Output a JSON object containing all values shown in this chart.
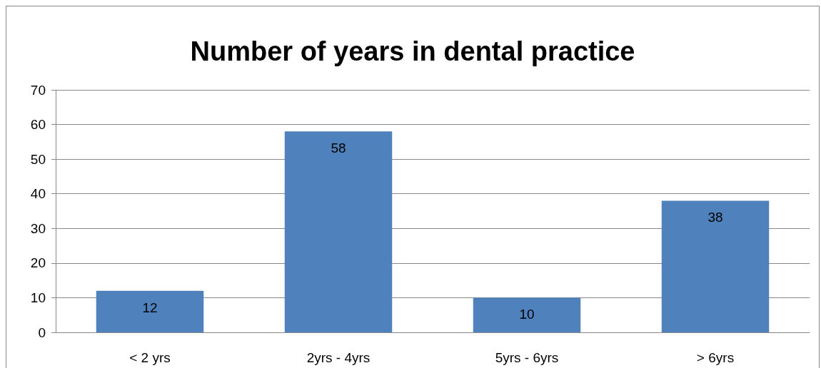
{
  "chart_data": {
    "type": "bar",
    "title": "Number of years in dental practice",
    "categories": [
      "< 2 yrs",
      "2yrs - 4yrs",
      "5yrs - 6yrs",
      "> 6yrs"
    ],
    "values": [
      12,
      58,
      10,
      38
    ],
    "color": "#4f81bd",
    "ylim": [
      0,
      70
    ],
    "yticks": [
      0,
      10,
      20,
      30,
      40,
      50,
      60,
      70
    ],
    "grid": "y",
    "data_labels": true
  }
}
